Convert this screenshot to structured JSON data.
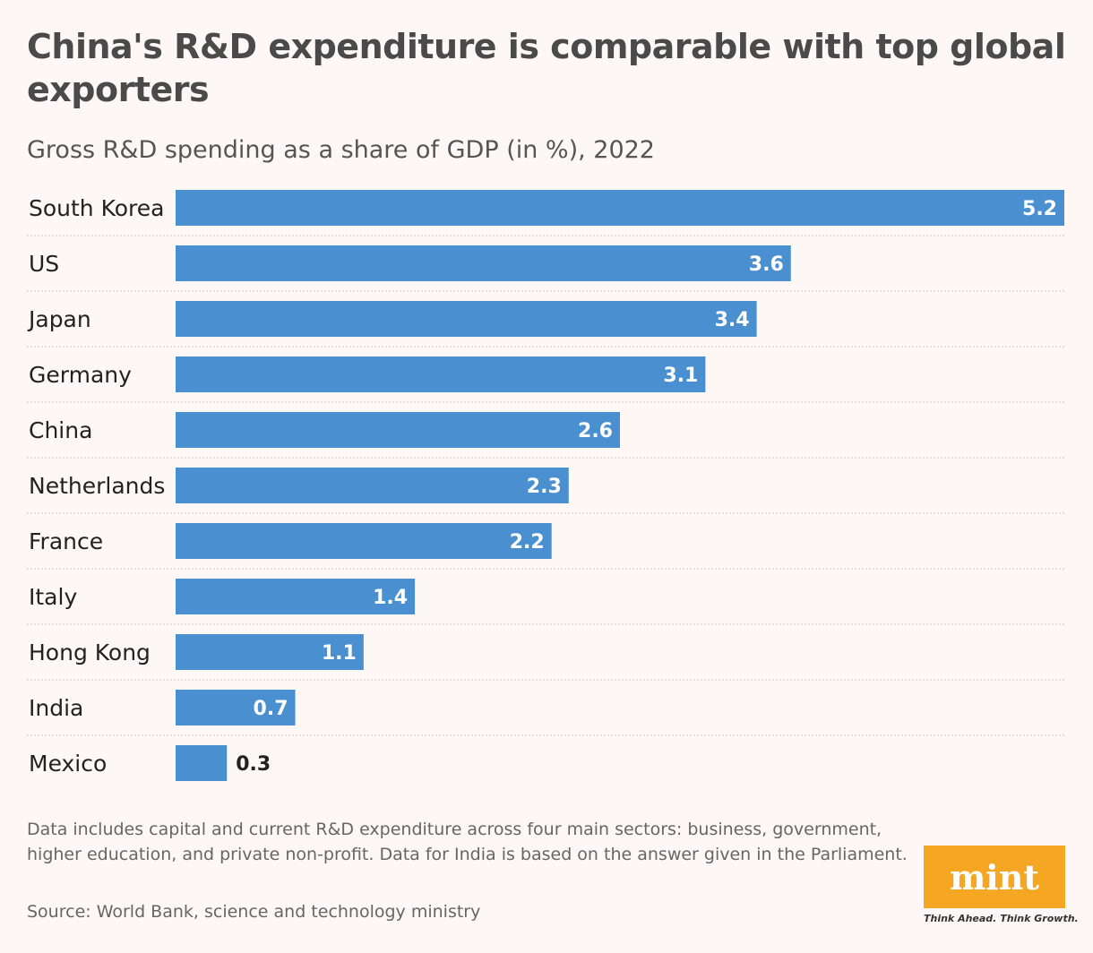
{
  "header": {
    "title": "China's R&D expenditure is comparable with top global exporters",
    "subtitle": "Gross R&D spending as a share of GDP (in %), 2022"
  },
  "chart_data": {
    "type": "bar",
    "orientation": "horizontal",
    "categories": [
      "South Korea",
      "US",
      "Japan",
      "Germany",
      "China",
      "Netherlands",
      "France",
      "Italy",
      "Hong Kong",
      "India",
      "Mexico"
    ],
    "values": [
      5.2,
      3.6,
      3.4,
      3.1,
      2.6,
      2.3,
      2.2,
      1.4,
      1.1,
      0.7,
      0.3
    ],
    "value_labels": [
      "5.2",
      "3.6",
      "3.4",
      "3.1",
      "2.6",
      "2.3",
      "2.2",
      "1.4",
      "1.1",
      "0.7",
      "0.3"
    ],
    "title": "China's R&D expenditure is comparable with top global exporters",
    "subtitle": "Gross R&D spending as a share of GDP (in %), 2022",
    "xlim": [
      0,
      5.2
    ],
    "grid": false,
    "bar_color": "#4a90d0"
  },
  "footer": {
    "note": "Data includes capital and current R&D expenditure across four main sectors: business, government, higher education, and private non-profit. Data for India is based on the answer given in the Parliament.",
    "source": "Source: World Bank, science and technology ministry"
  },
  "brand": {
    "logo": "mint",
    "tagline": "Think Ahead. Think Growth.",
    "color": "#f5a623"
  }
}
